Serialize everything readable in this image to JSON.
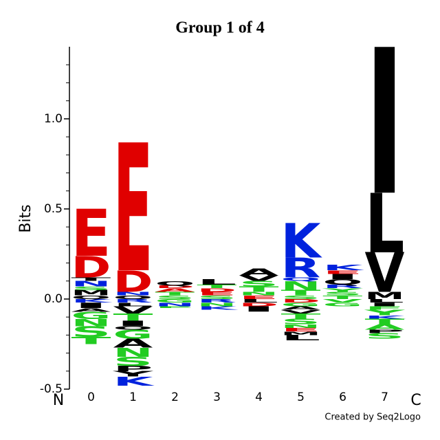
{
  "chart_data": {
    "type": "logo",
    "title": "Group 1 of 4",
    "y_label": "Bits",
    "start_label": "N",
    "end_label": "C",
    "credit": "Created by Seq2Logo",
    "ylim": [
      -0.5,
      1.4
    ],
    "yticks": [
      {
        "value": -0.5,
        "label": "-0.5"
      },
      {
        "value": 0,
        "label": "0.0"
      },
      {
        "value": 0.5,
        "label": "0.5"
      },
      {
        "value": 1,
        "label": "1.0"
      }
    ],
    "minor_yticks": [
      -0.4,
      -0.3,
      -0.2,
      -0.1,
      0.1,
      0.2,
      0.3,
      0.4,
      0.6,
      0.7,
      0.8,
      0.9,
      1.1,
      1.2,
      1.3
    ],
    "categories": [
      "0",
      "1",
      "2",
      "3",
      "4",
      "5",
      "6",
      "7"
    ],
    "stacks": [
      {
        "pos": [
          [
            "Q",
            0.02,
            "#000000"
          ],
          [
            "M",
            0.03,
            "#000000"
          ],
          [
            "S",
            0.02,
            "#22cc22"
          ],
          [
            "N",
            0.03,
            "#0022dd"
          ],
          [
            "T",
            0.02,
            "#000000"
          ],
          [
            "D",
            0.12,
            "#e00000"
          ],
          [
            "E",
            0.26,
            "#e00000"
          ]
        ],
        "neg": [
          [
            "K",
            0.02,
            "#0022dd"
          ],
          [
            "I",
            0.03,
            "#000000"
          ],
          [
            "A",
            0.02,
            "#000000"
          ],
          [
            "G",
            0.04,
            "#22cc22"
          ],
          [
            "N",
            0.04,
            "#22cc22"
          ],
          [
            "S",
            0.06,
            "#22cc22"
          ],
          [
            "T",
            0.04,
            "#22cc22"
          ]
        ]
      },
      {
        "pos": [
          [
            "Q",
            0.02,
            "#000000"
          ],
          [
            "N",
            0.02,
            "#0022dd"
          ],
          [
            "D",
            0.12,
            "#e00000"
          ],
          [
            "E",
            0.71,
            "#e00000"
          ]
        ],
        "neg": [
          [
            "R",
            0.02,
            "#0022dd"
          ],
          [
            "L",
            0.02,
            "#000000"
          ],
          [
            "V",
            0.04,
            "#000000"
          ],
          [
            "T",
            0.04,
            "#22cc22"
          ],
          [
            "I",
            0.03,
            "#000000"
          ],
          [
            "Q",
            0.02,
            "#000000"
          ],
          [
            "G",
            0.05,
            "#22cc22"
          ],
          [
            "A",
            0.05,
            "#000000"
          ],
          [
            "N",
            0.05,
            "#22cc22"
          ],
          [
            "S",
            0.05,
            "#22cc22"
          ],
          [
            "P",
            0.03,
            "#000000"
          ],
          [
            "Y",
            0.03,
            "#000000"
          ],
          [
            "K",
            0.05,
            "#0022dd"
          ]
        ]
      },
      {
        "pos": [
          [
            "S",
            0.02,
            "#22cc22"
          ],
          [
            "T",
            0.02,
            "#22cc22"
          ],
          [
            "A",
            0.02,
            "#e00000"
          ],
          [
            "D",
            0.015,
            "#e00000"
          ],
          [
            "Q",
            0.025,
            "#000000"
          ]
        ],
        "neg": [
          [
            "G",
            0.02,
            "#22cc22"
          ],
          [
            "N",
            0.02,
            "#0022dd"
          ],
          [
            "E",
            0.01,
            "#22cc22"
          ]
        ]
      },
      {
        "pos": [
          [
            "S",
            0.02,
            "#22cc22"
          ],
          [
            "E",
            0.02,
            "#e00000"
          ],
          [
            "D",
            0.02,
            "#e00000"
          ],
          [
            "T",
            0.02,
            "#22cc22"
          ],
          [
            "L",
            0.03,
            "#000000"
          ]
        ],
        "neg": [
          [
            "R",
            0.02,
            "#0022dd"
          ],
          [
            "N",
            0.02,
            "#22cc22"
          ],
          [
            "K",
            0.02,
            "#0022dd"
          ]
        ]
      },
      {
        "pos": [
          [
            "E",
            0.02,
            "#e00000"
          ],
          [
            "N",
            0.02,
            "#22cc22"
          ],
          [
            "T",
            0.03,
            "#22cc22"
          ],
          [
            "S",
            0.03,
            "#22cc22"
          ],
          [
            "V",
            0.03,
            "#000000"
          ],
          [
            "A",
            0.04,
            "#000000"
          ]
        ],
        "neg": [
          [
            "L",
            0.02,
            "#000000"
          ],
          [
            "D",
            0.02,
            "#e00000"
          ],
          [
            "I",
            0.03,
            "#000000"
          ]
        ]
      },
      {
        "pos": [
          [
            "S",
            0.02,
            "#22cc22"
          ],
          [
            "T",
            0.03,
            "#22cc22"
          ],
          [
            "N",
            0.05,
            "#22cc22"
          ],
          [
            "Q",
            0.02,
            "#0022dd"
          ],
          [
            "R",
            0.11,
            "#0022dd"
          ],
          [
            "K",
            0.19,
            "#0022dd"
          ]
        ],
        "neg": [
          [
            "D",
            0.02,
            "#e00000"
          ],
          [
            "G",
            0.02,
            "#22cc22"
          ],
          [
            "A",
            0.02,
            "#000000"
          ],
          [
            "V",
            0.02,
            "#000000"
          ],
          [
            "T",
            0.03,
            "#22cc22"
          ],
          [
            "S",
            0.03,
            "#22cc22"
          ],
          [
            "N",
            0.02,
            "#22cc22"
          ],
          [
            "E",
            0.02,
            "#e00000"
          ],
          [
            "M",
            0.02,
            "#000000"
          ],
          [
            "L",
            0.03,
            "#000000"
          ]
        ]
      },
      {
        "pos": [
          [
            "T",
            0.02,
            "#22cc22"
          ],
          [
            "S",
            0.02,
            "#22cc22"
          ],
          [
            "Y",
            0.02,
            "#22cc22"
          ],
          [
            "R",
            0.02,
            "#0022dd"
          ],
          [
            "Q",
            0.03,
            "#000000"
          ],
          [
            "I",
            0.03,
            "#000000"
          ],
          [
            "E",
            0.02,
            "#e00000"
          ],
          [
            "K",
            0.03,
            "#0022dd"
          ]
        ],
        "neg": [
          [
            "V",
            0.02,
            "#22cc22"
          ],
          [
            "G",
            0.02,
            "#22cc22"
          ]
        ]
      },
      {
        "pos": [
          [
            "M",
            0.04,
            "#000000"
          ],
          [
            "V",
            0.22,
            "#000000"
          ],
          [
            "L",
            0.33,
            "#000000"
          ],
          [
            "I",
            0.81,
            "#000000"
          ]
        ],
        "neg": [
          [
            "L",
            0.02,
            "#000000"
          ],
          [
            "I",
            0.02,
            "#000000"
          ],
          [
            "F",
            0.02,
            "#22cc22"
          ],
          [
            "Y",
            0.03,
            "#22cc22"
          ],
          [
            "K",
            0.02,
            "#0022dd"
          ],
          [
            "T",
            0.03,
            "#22cc22"
          ],
          [
            "A",
            0.03,
            "#22cc22"
          ],
          [
            "P",
            0.02,
            "#000000"
          ],
          [
            "S",
            0.03,
            "#22cc22"
          ]
        ]
      }
    ]
  }
}
